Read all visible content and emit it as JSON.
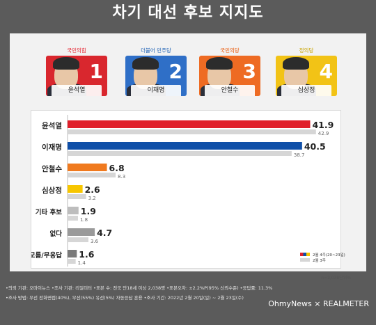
{
  "title": "차기 대선 후보 지지도",
  "candidates": [
    {
      "party": "국민의힘",
      "party_color": "#e61e2b",
      "name": "윤석열",
      "number": "1",
      "bg": "#d9272e"
    },
    {
      "party": "더불어 민주당",
      "party_color": "#1a5fb4",
      "name": "이재명",
      "number": "2",
      "bg": "#2f6fc7"
    },
    {
      "party": "국민의당",
      "party_color": "#ea5504",
      "name": "안철수",
      "number": "3",
      "bg": "#ee6b23"
    },
    {
      "party": "정의당",
      "party_color": "#c9a400",
      "name": "심상정",
      "number": "4",
      "bg": "#f2c316"
    }
  ],
  "chart_data": {
    "type": "bar",
    "orientation": "horizontal",
    "categories": [
      "윤석열",
      "이재명",
      "안철수",
      "심상정",
      "기타 후보",
      "없다",
      "모름/무응답"
    ],
    "series": [
      {
        "name": "2월 4주(20~23일)",
        "values": [
          41.9,
          40.5,
          6.8,
          2.6,
          1.9,
          4.7,
          1.6
        ],
        "colors": [
          "#e01f2a",
          "#0f4fa8",
          "#f07a1f",
          "#f7c600",
          "#bdbdbd",
          "#9a9a9a",
          "#7a7a7a"
        ]
      },
      {
        "name": "2월 3주",
        "values": [
          42.9,
          38.7,
          8.3,
          3.2,
          1.8,
          3.6,
          1.4
        ],
        "color": "#d6d6d6"
      }
    ],
    "xlim": [
      0,
      50
    ],
    "grid": false,
    "legend_position": "bottom-right"
  },
  "sample_note": "n=2,038단위%",
  "footer": {
    "line1": "•의뢰 기관: 오마이뉴스 •조사 기관: 리얼미터 •표본 수: 전국 만18세 이상 2,038명 •표본오차: ±2.2%P(95% 신뢰수준) •응답률: 11.3%",
    "line2": "•조사 방법: 무선 전화면접(40%), 무선(55%) 유선(5%) 자동응답 혼용 •조사 기간: 2022년 2월 20일(일) ~ 2월 23일(수)",
    "brand": "OhmyNews × REALMETER"
  }
}
